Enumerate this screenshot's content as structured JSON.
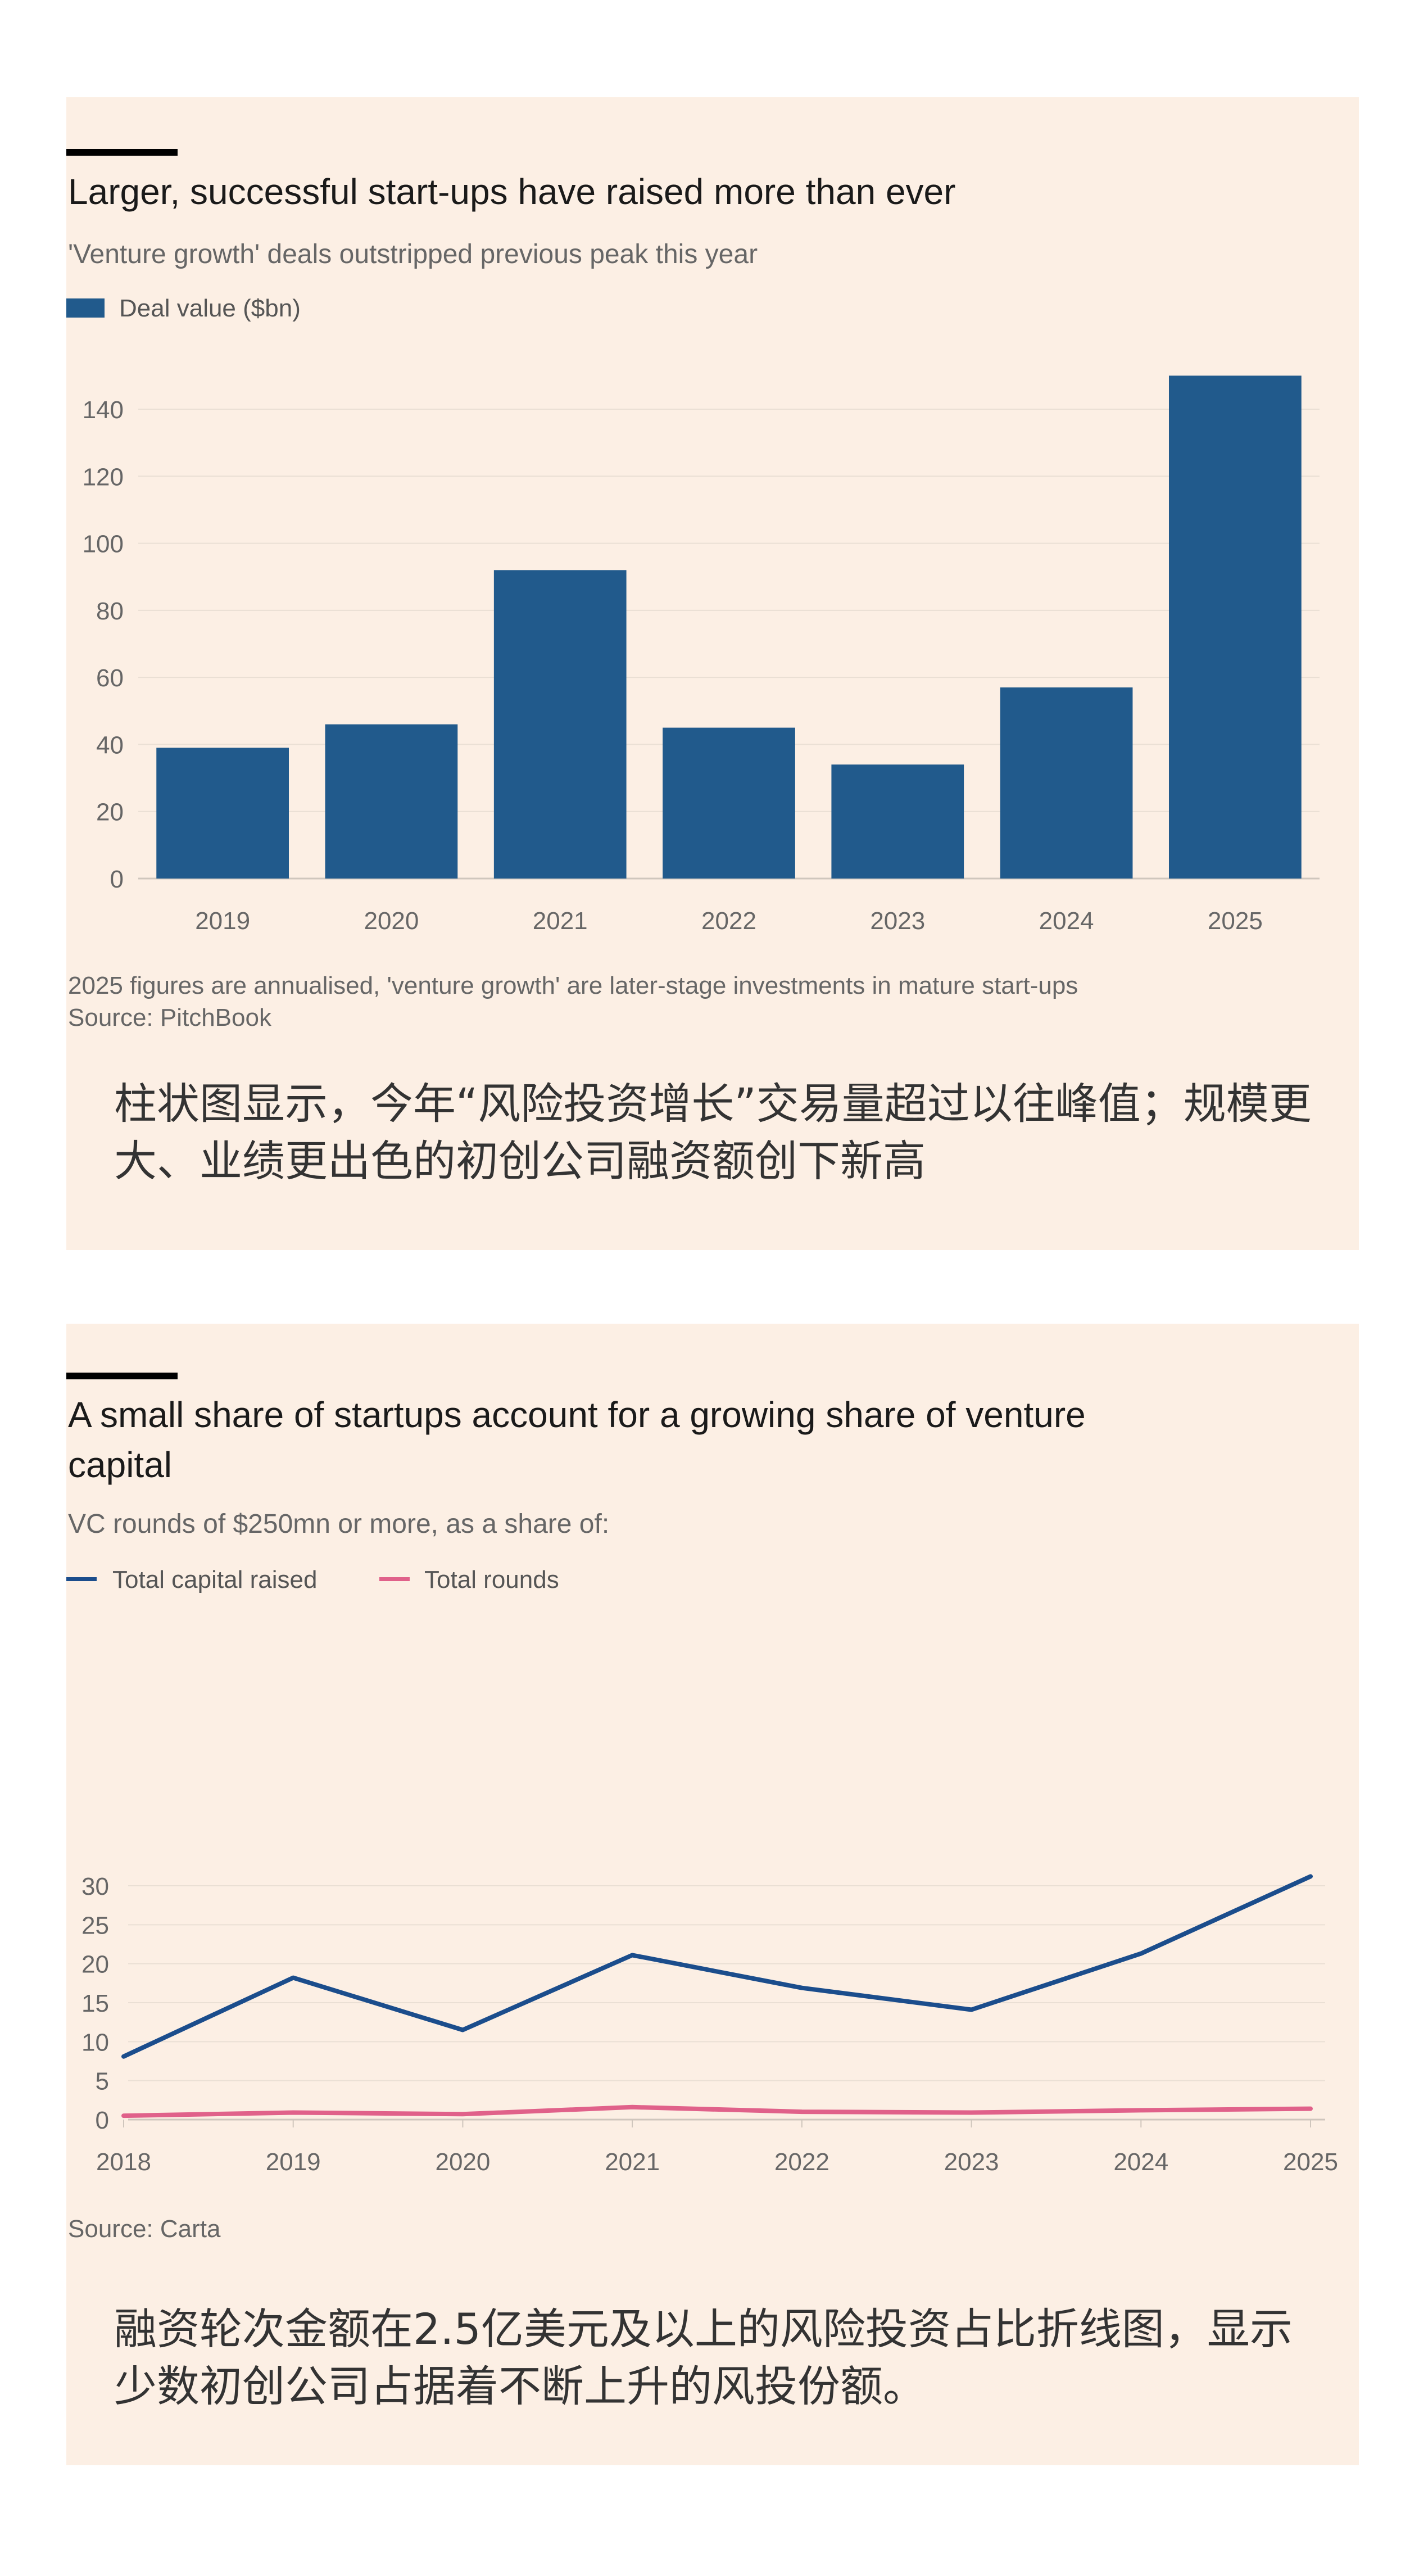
{
  "charts": [
    {
      "title": "Larger, successful start-ups have raised more than ever",
      "subtitle": "'Venture growth' deals outstripped previous peak this year",
      "footnote": "2025 figures are annualised, 'venture growth' are later-stage investments in mature start-ups",
      "source": "Source: PitchBook",
      "caption": "柱状图显示，今年“风险投资增长”交易量超过以往峰值；规模更大、业绩更出色的初创公司融资额创下新高"
    },
    {
      "title": "A small share of startups account for a growing share of venture capital",
      "subtitle": "VC rounds of $250mn or more, as a share of:",
      "source": "Source: Carta",
      "caption": "融资轮次金额在2.5亿美元及以上的风险投资占比折线图，显示少数初创公司占据着不断上升的风投份额。"
    }
  ],
  "colors": {
    "background": "#fcefe4",
    "bar": "#215a8c",
    "line1": "#1b4d8c",
    "line2": "#e0618a",
    "accent": "#000000"
  },
  "chart_data": [
    {
      "type": "bar",
      "title": "Larger, successful start-ups have raised more than ever",
      "categories": [
        "2019",
        "2020",
        "2021",
        "2022",
        "2023",
        "2024",
        "2025"
      ],
      "series": [
        {
          "name": "Deal value ($bn)",
          "values": [
            39,
            46,
            92,
            45,
            34,
            57,
            150
          ]
        }
      ],
      "yticks": [
        "0",
        "20",
        "40",
        "60",
        "80",
        "100",
        "120",
        "140"
      ],
      "ylim": [
        0,
        150
      ],
      "grid": true,
      "legend": "top-left"
    },
    {
      "type": "line",
      "title": "A small share of startups account for a growing share of venture capital",
      "categories": [
        "2018",
        "2019",
        "2020",
        "2021",
        "2022",
        "2023",
        "2024",
        "2025"
      ],
      "series": [
        {
          "name": "Total capital raised",
          "values": [
            8.1,
            18.2,
            11.5,
            21.1,
            16.9,
            14.1,
            21.3,
            31.2
          ]
        },
        {
          "name": "Total rounds",
          "values": [
            0.5,
            0.9,
            0.7,
            1.6,
            1.0,
            0.9,
            1.2,
            1.4
          ]
        }
      ],
      "yticks": [
        "0",
        "5",
        "10",
        "15",
        "20",
        "25",
        "30"
      ],
      "ylim": [
        0,
        32
      ],
      "grid": true,
      "legend": "top-left"
    }
  ]
}
